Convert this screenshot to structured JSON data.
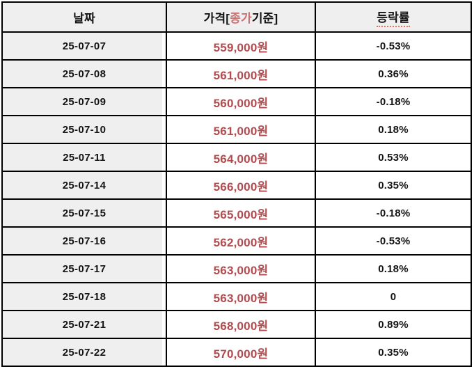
{
  "table": {
    "header": {
      "date": "날짜",
      "price_prefix": "가격[",
      "price_highlight": "종가",
      "price_suffix": "기준]",
      "change": "등락률"
    },
    "rows": [
      {
        "date": "25-07-07",
        "price": "559,000원",
        "change": "-0.53%"
      },
      {
        "date": "25-07-08",
        "price": "561,000원",
        "change": "0.36%"
      },
      {
        "date": "25-07-09",
        "price": "560,000원",
        "change": "-0.18%"
      },
      {
        "date": "25-07-10",
        "price": "561,000원",
        "change": "0.18%"
      },
      {
        "date": "25-07-11",
        "price": "564,000원",
        "change": "0.53%"
      },
      {
        "date": "25-07-14",
        "price": "566,000원",
        "change": "0.35%"
      },
      {
        "date": "25-07-15",
        "price": "565,000원",
        "change": "-0.18%"
      },
      {
        "date": "25-07-16",
        "price": "562,000원",
        "change": "-0.53%"
      },
      {
        "date": "25-07-17",
        "price": "563,000원",
        "change": "0.18%"
      },
      {
        "date": "25-07-18",
        "price": "563,000원",
        "change": "0"
      },
      {
        "date": "25-07-21",
        "price": "568,000원",
        "change": "0.89%"
      },
      {
        "date": "25-07-22",
        "price": "570,000원",
        "change": "0.35%"
      }
    ]
  },
  "colors": {
    "price_text": "#b24a4e",
    "header_highlight": "#ca7373",
    "header_background": "#efefef",
    "date_column_background": "#efefef",
    "border": "#000000",
    "body_text": "#141414",
    "spellcheck_underline": "#e0745c"
  },
  "chart_data": {
    "type": "table",
    "columns": [
      "날짜",
      "가격[종가기준]",
      "등락률"
    ],
    "rows": [
      [
        "25-07-07",
        "559,000원",
        "-0.53%"
      ],
      [
        "25-07-08",
        "561,000원",
        "0.36%"
      ],
      [
        "25-07-09",
        "560,000원",
        "-0.18%"
      ],
      [
        "25-07-10",
        "561,000원",
        "0.18%"
      ],
      [
        "25-07-11",
        "564,000원",
        "0.53%"
      ],
      [
        "25-07-14",
        "566,000원",
        "0.35%"
      ],
      [
        "25-07-15",
        "565,000원",
        "-0.18%"
      ],
      [
        "25-07-16",
        "562,000원",
        "-0.53%"
      ],
      [
        "25-07-17",
        "563,000원",
        "0.18%"
      ],
      [
        "25-07-18",
        "563,000원",
        "0"
      ],
      [
        "25-07-21",
        "568,000원",
        "0.89%"
      ],
      [
        "25-07-22",
        "570,000원",
        "0.35%"
      ]
    ],
    "prices_krw": [
      559000,
      561000,
      560000,
      561000,
      564000,
      566000,
      565000,
      562000,
      563000,
      563000,
      568000,
      570000
    ],
    "change_pct": [
      -0.53,
      0.36,
      -0.18,
      0.18,
      0.53,
      0.35,
      -0.18,
      -0.53,
      0.18,
      0,
      0.89,
      0.35
    ]
  }
}
